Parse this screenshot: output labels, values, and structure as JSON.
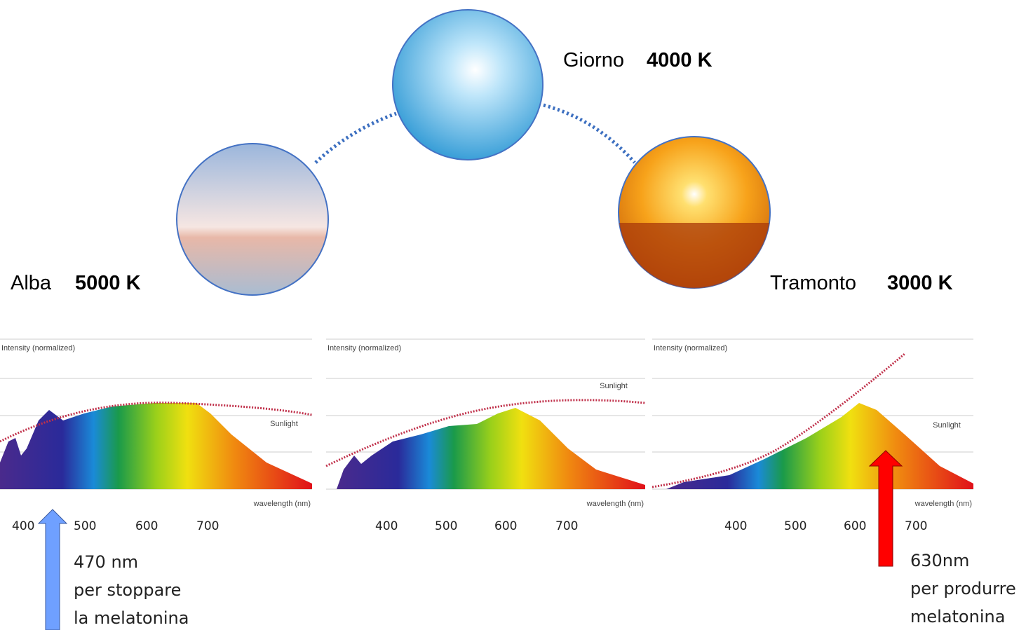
{
  "scenes": [
    {
      "name": "Giorno",
      "temperature": "4000 K"
    },
    {
      "name": "Alba",
      "temperature": "5000 K"
    },
    {
      "name": "Tramonto",
      "temperature": "3000 K"
    }
  ],
  "spectra": [
    {
      "y_label": "Intensity (normalized)",
      "series_label": "Sunlight",
      "x_label": "wavelength (nm)",
      "ticks": [
        "400",
        "500",
        "600",
        "700"
      ]
    },
    {
      "y_label": "Intensity (normalized)",
      "series_label": "Sunlight",
      "x_label": "wavelength (nm)",
      "ticks": [
        "400",
        "500",
        "600",
        "700"
      ]
    },
    {
      "y_label": "Intensity (normalized)",
      "series_label": "Sunlight",
      "x_label": "wavelength (nm)",
      "ticks": [
        "400",
        "500",
        "600",
        "700"
      ]
    }
  ],
  "annotations": [
    {
      "lines": [
        "470 nm",
        "per stoppare",
        "la melatonina"
      ]
    },
    {
      "lines": [
        "630nm",
        "per produrre",
        "melatonina"
      ]
    }
  ]
}
